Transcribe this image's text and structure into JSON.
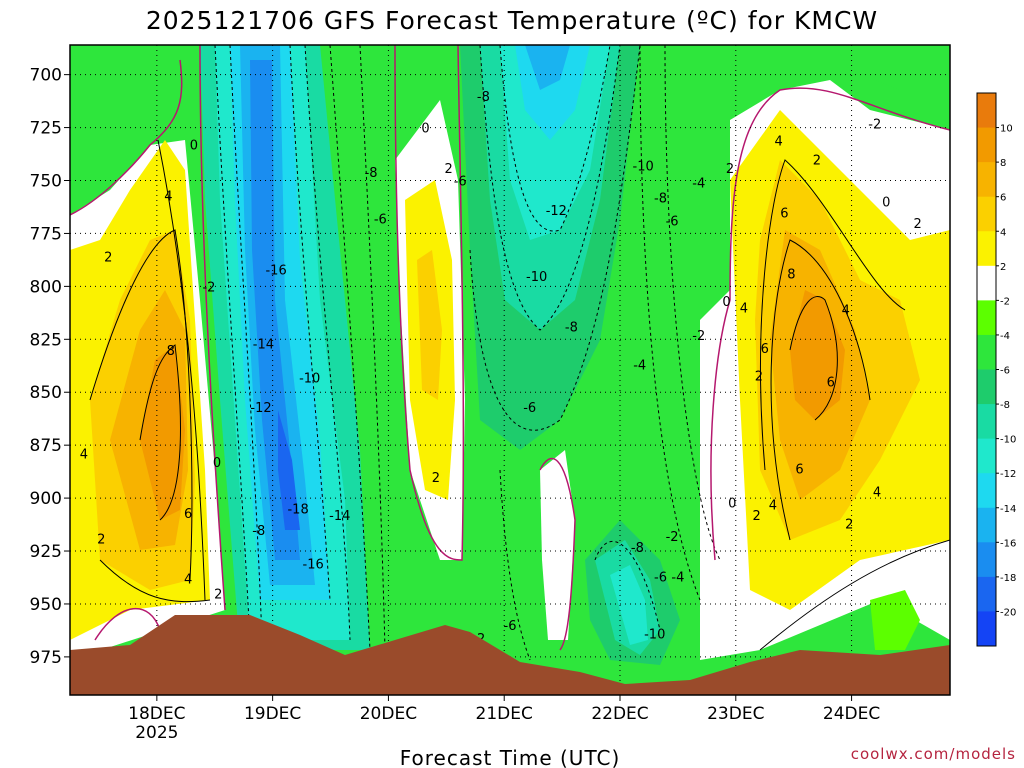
{
  "chart_data": {
    "type": "heatmap",
    "title": "2025121706 GFS Forecast Temperature (ºC) for KMCW",
    "xlabel": "Forecast Time (UTC)",
    "ylabel": "",
    "credit": "coolwx.com/models",
    "x_ticks": [
      {
        "label": "18DEC",
        "sublabel": "2025",
        "t": 18.0
      },
      {
        "label": "19DEC",
        "t": 19.0
      },
      {
        "label": "20DEC",
        "t": 20.0
      },
      {
        "label": "21DEC",
        "t": 21.0
      },
      {
        "label": "22DEC",
        "t": 22.0
      },
      {
        "label": "23DEC",
        "t": 23.0
      },
      {
        "label": "24DEC",
        "t": 24.0
      }
    ],
    "xlim": [
      17.25,
      24.85
    ],
    "y_ticks": [
      "700",
      "725",
      "750",
      "775",
      "800",
      "825",
      "850",
      "875",
      "900",
      "925",
      "950",
      "975"
    ],
    "ylim": [
      993,
      686
    ],
    "colorbar": {
      "labels": [
        "10",
        "8",
        "6",
        "4",
        "2",
        "-2",
        "-4",
        "-6",
        "-8",
        "-10",
        "-12",
        "-14",
        "-16",
        "-18",
        "-20"
      ],
      "colors": [
        "#e97b0c",
        "#f29a00",
        "#f7b300",
        "#fbd000",
        "#fbf200",
        "#ffffff",
        "#5cff00",
        "#2ee63c",
        "#1ecc6c",
        "#19dba3",
        "#1fe8cc",
        "#1ed9f0",
        "#1ab3f0",
        "#1a8df0",
        "#1a66f0",
        "#1444f5"
      ]
    },
    "contour_labels": [
      {
        "text": "0",
        "t": 18.32,
        "p": 733
      },
      {
        "text": "4",
        "t": 18.1,
        "p": 757
      },
      {
        "text": "2",
        "t": 17.58,
        "p": 786
      },
      {
        "text": "-2",
        "t": 18.45,
        "p": 800
      },
      {
        "text": "8",
        "t": 18.12,
        "p": 830
      },
      {
        "text": "4",
        "t": 17.37,
        "p": 879
      },
      {
        "text": "0",
        "t": 18.52,
        "p": 883
      },
      {
        "text": "6",
        "t": 18.27,
        "p": 907
      },
      {
        "text": "2",
        "t": 17.52,
        "p": 919
      },
      {
        "text": "4",
        "t": 18.27,
        "p": 938
      },
      {
        "text": "2",
        "t": 18.53,
        "p": 945
      },
      {
        "text": "-16",
        "t": 19.03,
        "p": 792
      },
      {
        "text": "-14",
        "t": 18.92,
        "p": 827
      },
      {
        "text": "-10",
        "t": 19.32,
        "p": 843
      },
      {
        "text": "-12",
        "t": 18.9,
        "p": 857
      },
      {
        "text": "-18",
        "t": 19.22,
        "p": 905
      },
      {
        "text": "-14",
        "t": 19.58,
        "p": 908
      },
      {
        "text": "-8",
        "t": 18.88,
        "p": 915
      },
      {
        "text": "-16",
        "t": 19.35,
        "p": 931
      },
      {
        "text": "0",
        "t": 20.32,
        "p": 725
      },
      {
        "text": "-8",
        "t": 19.85,
        "p": 746
      },
      {
        "text": "-6",
        "t": 19.93,
        "p": 768
      },
      {
        "text": "2",
        "t": 20.52,
        "p": 744
      },
      {
        "text": "-6",
        "t": 20.62,
        "p": 750
      },
      {
        "text": "2",
        "t": 20.41,
        "p": 890
      },
      {
        "text": "-8",
        "t": 20.82,
        "p": 710
      },
      {
        "text": "-12",
        "t": 21.45,
        "p": 764
      },
      {
        "text": "-10",
        "t": 21.28,
        "p": 795
      },
      {
        "text": "-8",
        "t": 21.58,
        "p": 819
      },
      {
        "text": "-6",
        "t": 21.22,
        "p": 857
      },
      {
        "text": "-2",
        "t": 20.78,
        "p": 966
      },
      {
        "text": "-6",
        "t": 21.05,
        "p": 960
      },
      {
        "text": "-10",
        "t": 22.2,
        "p": 743
      },
      {
        "text": "-8",
        "t": 22.35,
        "p": 758
      },
      {
        "text": "-6",
        "t": 22.45,
        "p": 769
      },
      {
        "text": "-4",
        "t": 22.68,
        "p": 751
      },
      {
        "text": "-4",
        "t": 22.17,
        "p": 837
      },
      {
        "text": "-2",
        "t": 22.68,
        "p": 823
      },
      {
        "text": "-8",
        "t": 22.15,
        "p": 923
      },
      {
        "text": "-2",
        "t": 22.45,
        "p": 918
      },
      {
        "text": "-6",
        "t": 22.35,
        "p": 937
      },
      {
        "text": "-4",
        "t": 22.5,
        "p": 937
      },
      {
        "text": "-10",
        "t": 22.3,
        "p": 964
      },
      {
        "text": "2",
        "t": 22.95,
        "p": 744
      },
      {
        "text": "4",
        "t": 23.37,
        "p": 731
      },
      {
        "text": "2",
        "t": 23.7,
        "p": 740
      },
      {
        "text": "6",
        "t": 23.42,
        "p": 765
      },
      {
        "text": "8",
        "t": 23.48,
        "p": 794
      },
      {
        "text": "0",
        "t": 22.92,
        "p": 807
      },
      {
        "text": "4",
        "t": 23.07,
        "p": 810
      },
      {
        "text": "4",
        "t": 23.95,
        "p": 811
      },
      {
        "text": "6",
        "t": 23.25,
        "p": 829
      },
      {
        "text": "2",
        "t": 23.2,
        "p": 842
      },
      {
        "text": "6",
        "t": 23.82,
        "p": 845
      },
      {
        "text": "6",
        "t": 23.55,
        "p": 886
      },
      {
        "text": "0",
        "t": 22.97,
        "p": 902
      },
      {
        "text": "2",
        "t": 23.18,
        "p": 908
      },
      {
        "text": "4",
        "t": 23.32,
        "p": 903
      },
      {
        "text": "4",
        "t": 24.22,
        "p": 897
      },
      {
        "text": "2",
        "t": 23.98,
        "p": 912
      },
      {
        "text": "-2",
        "t": 24.2,
        "p": 723
      },
      {
        "text": "0",
        "t": 24.3,
        "p": 760
      },
      {
        "text": "2",
        "t": 24.57,
        "p": 770
      }
    ]
  }
}
